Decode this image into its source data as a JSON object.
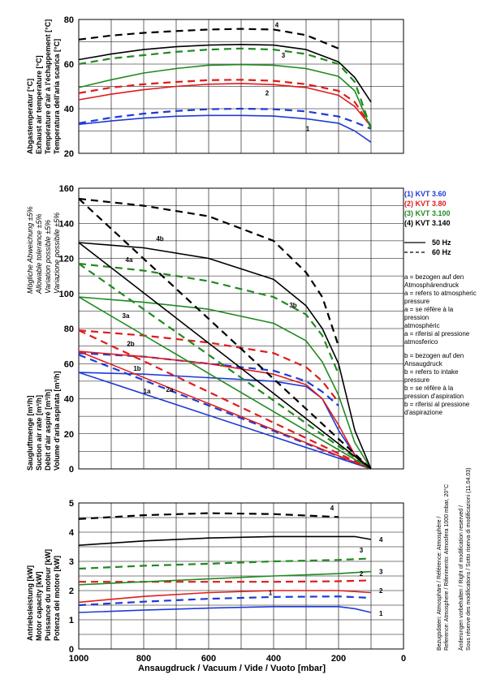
{
  "chart_data": [
    {
      "id": "temperature",
      "type": "line",
      "ylabel": [
        "Abgastemperatur [°C]",
        "Exhaust air temperature [°C]",
        "Température d'air à l'échappement [°C]",
        "Temperatura dell'aria scarica [°C]"
      ],
      "xlim": [
        1000,
        0
      ],
      "ylim": [
        20,
        80
      ],
      "yticks": [
        20,
        40,
        60,
        80
      ],
      "series": [
        {
          "name": "1",
          "freq": "50 Hz",
          "color": "#1f3bd6",
          "label": "1",
          "x": [
            1000,
            900,
            800,
            700,
            600,
            500,
            400,
            300,
            200,
            150,
            100
          ],
          "y": [
            33,
            34.5,
            35.8,
            36.6,
            37,
            37,
            36.7,
            35.5,
            33.5,
            30,
            25
          ]
        },
        {
          "name": "1",
          "freq": "60 Hz",
          "color": "#1f3bd6",
          "x": [
            1000,
            900,
            800,
            700,
            600,
            500,
            400,
            300,
            200,
            150,
            100
          ],
          "y": [
            33.5,
            36,
            37.8,
            39,
            39.8,
            40,
            39.8,
            38.8,
            36.5,
            34,
            31
          ]
        },
        {
          "name": "2",
          "freq": "50 Hz",
          "color": "#e01b1b",
          "label": "2",
          "x": [
            1000,
            900,
            800,
            700,
            600,
            500,
            400,
            300,
            200,
            150,
            100
          ],
          "y": [
            44,
            46.5,
            48.5,
            50,
            51,
            51.3,
            50.8,
            49.5,
            46,
            41,
            32
          ]
        },
        {
          "name": "2",
          "freq": "60 Hz",
          "color": "#e01b1b",
          "x": [
            1000,
            900,
            800,
            700,
            600,
            500,
            400,
            300,
            200,
            150,
            100
          ],
          "y": [
            47,
            49.5,
            51,
            52,
            52.8,
            53,
            52.5,
            51,
            48,
            43,
            32
          ]
        },
        {
          "name": "3",
          "freq": "50 Hz",
          "color": "#1f8a1f",
          "x": [
            1000,
            900,
            800,
            700,
            600,
            500,
            400,
            300,
            200,
            150,
            100
          ],
          "y": [
            49.5,
            53,
            56,
            58,
            59.5,
            59.8,
            59.5,
            58,
            54.5,
            48,
            31
          ]
        },
        {
          "name": "3",
          "freq": "60 Hz",
          "color": "#1f8a1f",
          "label": "3",
          "x": [
            1000,
            900,
            800,
            700,
            600,
            500,
            400,
            300,
            200,
            150,
            100
          ],
          "y": [
            60,
            62.5,
            64,
            65.5,
            66.5,
            67,
            66.5,
            64.5,
            60,
            52,
            31
          ]
        },
        {
          "name": "4",
          "freq": "50 Hz",
          "color": "#000000",
          "x": [
            1000,
            900,
            800,
            700,
            600,
            500,
            400,
            300,
            200,
            150,
            100
          ],
          "y": [
            62,
            64.5,
            66.5,
            67.8,
            68.5,
            68.8,
            68.5,
            66.5,
            61,
            54,
            43
          ]
        },
        {
          "name": "4",
          "freq": "60 Hz",
          "color": "#000000",
          "label": "4",
          "x": [
            1000,
            900,
            800,
            700,
            600,
            500,
            400,
            300,
            200
          ],
          "y": [
            71,
            72.8,
            74,
            74.8,
            75.5,
            75.8,
            75.5,
            73,
            67
          ]
        }
      ]
    },
    {
      "id": "suction",
      "type": "line",
      "ylabel": [
        "Saugluftmenge [m³/h]",
        "Suction air rate [m³/h]",
        "Débit d'air aspiré [m³/h]",
        "Volume d'aria aspirata [m³/h]"
      ],
      "ylabel2": [
        "Mögliche Abweichung ±5%",
        "Allowable tolerance ±5%",
        "Variation possible ±5%",
        "Variazione possibile ±5%"
      ],
      "xlim": [
        1000,
        0
      ],
      "ylim": [
        0,
        160
      ],
      "yticks": [
        0,
        20,
        40,
        60,
        80,
        100,
        120,
        140,
        160
      ],
      "series": [
        {
          "name": "1a",
          "freq": "50 Hz",
          "color": "#1f3bd6",
          "x": [
            1000,
            100
          ],
          "y": [
            55,
            0
          ]
        },
        {
          "name": "1a",
          "freq": "60 Hz",
          "color": "#1f3bd6",
          "x": [
            1000,
            100
          ],
          "y": [
            65,
            0
          ]
        },
        {
          "name": "1b",
          "freq": "50 Hz",
          "color": "#1f3bd6",
          "x": [
            1000,
            800,
            600,
            400,
            300,
            250,
            200,
            150,
            100
          ],
          "y": [
            55,
            54,
            52,
            50,
            47,
            40,
            22,
            8,
            0
          ]
        },
        {
          "name": "1b",
          "freq": "60 Hz",
          "color": "#1f3bd6",
          "x": [
            1000,
            800,
            600,
            400,
            300,
            250,
            200
          ],
          "y": [
            66,
            64,
            60,
            56,
            50,
            44,
            36
          ]
        },
        {
          "name": "2a",
          "freq": "50 Hz",
          "color": "#e01b1b",
          "x": [
            1000,
            100
          ],
          "y": [
            67,
            0
          ]
        },
        {
          "name": "2a",
          "freq": "60 Hz",
          "color": "#e01b1b",
          "x": [
            1000,
            100
          ],
          "y": [
            79,
            0
          ]
        },
        {
          "name": "2b",
          "freq": "50 Hz",
          "color": "#e01b1b",
          "x": [
            1000,
            800,
            600,
            400,
            300,
            250,
            200,
            150,
            100
          ],
          "y": [
            67,
            64,
            60,
            54,
            48,
            40,
            25,
            8,
            0
          ]
        },
        {
          "name": "2b",
          "freq": "60 Hz",
          "color": "#e01b1b",
          "x": [
            1000,
            800,
            600,
            400,
            300,
            250,
            200
          ],
          "y": [
            79,
            76,
            72,
            66,
            58,
            50,
            38
          ]
        },
        {
          "name": "3a",
          "freq": "50 Hz",
          "color": "#1f8a1f",
          "x": [
            1000,
            100
          ],
          "y": [
            98,
            0
          ]
        },
        {
          "name": "3a",
          "freq": "60 Hz",
          "color": "#1f8a1f",
          "x": [
            1000,
            100
          ],
          "y": [
            117,
            0
          ]
        },
        {
          "name": "3b",
          "freq": "50 Hz",
          "color": "#1f8a1f",
          "x": [
            1000,
            800,
            600,
            400,
            300,
            250,
            200,
            150,
            100
          ],
          "y": [
            98,
            95,
            91,
            83,
            73,
            61,
            42,
            15,
            0
          ]
        },
        {
          "name": "3b",
          "freq": "60 Hz",
          "color": "#1f8a1f",
          "x": [
            1000,
            800,
            600,
            400,
            300,
            250,
            200
          ],
          "y": [
            117,
            113,
            107,
            98,
            88,
            76,
            54
          ]
        },
        {
          "name": "4a",
          "freq": "50 Hz",
          "color": "#000000",
          "x": [
            1000,
            100
          ],
          "y": [
            129,
            0
          ]
        },
        {
          "name": "4a",
          "freq": "60 Hz",
          "color": "#000000",
          "x": [
            1000,
            100
          ],
          "y": [
            154,
            0
          ]
        },
        {
          "name": "4b",
          "freq": "50 Hz",
          "color": "#000000",
          "x": [
            1000,
            800,
            600,
            400,
            300,
            250,
            200,
            150,
            100
          ],
          "y": [
            129,
            126,
            120,
            108,
            93,
            80,
            60,
            22,
            0
          ]
        },
        {
          "name": "4b",
          "freq": "60 Hz",
          "color": "#000000",
          "x": [
            1000,
            800,
            600,
            400,
            300,
            250,
            200
          ],
          "y": [
            154,
            150,
            144,
            130,
            112,
            98,
            70
          ]
        }
      ],
      "labels": [
        "1a",
        "1b",
        "2a",
        "2b",
        "3a",
        "3b",
        "4a",
        "4b"
      ]
    },
    {
      "id": "power",
      "type": "line",
      "ylabel": [
        "Antriebsleistung [kW]",
        "Motor capacity [kW]",
        "Puissance du moteur [kW]",
        "Potenza del motore [kW]"
      ],
      "xlabel": "Ansaugdruck / Vacuum / Vide / Vuoto    [mbar]",
      "xlim": [
        1000,
        0
      ],
      "ylim": [
        0,
        5
      ],
      "yticks": [
        0,
        1,
        2,
        3,
        4,
        5
      ],
      "xticks": [
        1000,
        800,
        600,
        400,
        200,
        0
      ],
      "series": [
        {
          "name": "1",
          "freq": "50 Hz",
          "color": "#1f3bd6",
          "x": [
            1000,
            800,
            600,
            400,
            200,
            150,
            100
          ],
          "y": [
            1.25,
            1.33,
            1.4,
            1.45,
            1.45,
            1.38,
            1.25
          ]
        },
        {
          "name": "1",
          "freq": "60 Hz",
          "color": "#1f3bd6",
          "x": [
            1000,
            800,
            600,
            400,
            200,
            100
          ],
          "y": [
            1.5,
            1.62,
            1.72,
            1.78,
            1.8,
            1.75
          ]
        },
        {
          "name": "2",
          "freq": "50 Hz",
          "color": "#e01b1b",
          "x": [
            1000,
            800,
            600,
            400,
            200,
            100
          ],
          "y": [
            1.6,
            1.8,
            1.93,
            2.0,
            2.0,
            1.93
          ]
        },
        {
          "name": "2",
          "freq": "60 Hz",
          "color": "#e01b1b",
          "x": [
            1000,
            800,
            600,
            400,
            200,
            100
          ],
          "y": [
            2.3,
            2.3,
            2.3,
            2.3,
            2.32,
            2.35
          ]
        },
        {
          "name": "3",
          "freq": "50 Hz",
          "color": "#1f8a1f",
          "x": [
            1000,
            800,
            600,
            400,
            200,
            100
          ],
          "y": [
            2.2,
            2.3,
            2.4,
            2.5,
            2.58,
            2.65
          ]
        },
        {
          "name": "3",
          "freq": "60 Hz",
          "color": "#1f8a1f",
          "x": [
            1000,
            800,
            600,
            400,
            200,
            100
          ],
          "y": [
            2.75,
            2.85,
            2.92,
            3.0,
            3.05,
            3.1
          ]
        },
        {
          "name": "4",
          "freq": "50 Hz",
          "color": "#000000",
          "x": [
            1000,
            800,
            600,
            400,
            200,
            150,
            100
          ],
          "y": [
            3.55,
            3.7,
            3.8,
            3.85,
            3.85,
            3.85,
            3.75
          ]
        },
        {
          "name": "4",
          "freq": "60 Hz",
          "color": "#000000",
          "x": [
            1000,
            800,
            600,
            400,
            200
          ],
          "y": [
            4.45,
            4.58,
            4.65,
            4.62,
            4.52
          ]
        }
      ]
    }
  ],
  "legend": {
    "models": [
      {
        "text": "(1)  KVT 3.60",
        "color": "#1f3bd6"
      },
      {
        "text": "(2)  KVT 3.80",
        "color": "#e01b1b"
      },
      {
        "text": "(3)  KVT 3.100",
        "color": "#1f8a1f"
      },
      {
        "text": "(4)  KVT 3.140",
        "color": "#000000"
      }
    ],
    "freq": [
      {
        "text": "50 Hz",
        "style": "solid"
      },
      {
        "text": "60 Hz",
        "style": "dashed"
      }
    ],
    "note_a": [
      "a = bezogen auf den",
      "Atmosphärendruck",
      "a = refers to atmospheric",
      "pressure",
      "a = se réfère à la",
      "pression",
      "atmosphéric",
      "a = riferisi al pressione",
      "atmosferico"
    ],
    "note_b": [
      "b = bezogen auf den",
      "Ansaugdruck",
      "b = refers to intake",
      "pressure",
      "b = se réfère à la",
      "pression d'aspiration",
      "b = riferisi al pressione",
      "d'aspirazione"
    ]
  },
  "side_notes": {
    "line1": "Bezugsdaten: Atmosphäre / Référence: Atmosphère /",
    "line2": "Reference: Atmosphere / Riferimento: Atmosfera    1000 mbar, 20°C",
    "line3": "Änderungen vorbehalten / Right of modification reserved /",
    "line4": "Sous réserve des modifications / Sotto riserva di modificazioni    (11.04.03)"
  }
}
